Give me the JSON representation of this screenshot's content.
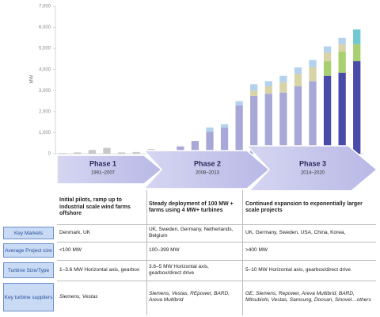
{
  "chart_data": {
    "type": "bar",
    "stacked": true,
    "y_label": "MW",
    "categories": [
      null,
      null,
      null,
      null,
      null,
      null,
      null,
      null,
      null,
      null,
      null,
      null,
      null,
      null,
      null,
      null,
      null,
      null,
      null,
      null,
      null
    ],
    "series": [
      {
        "color": "#c8c8c8",
        "values": [
          30,
          60,
          180,
          280,
          60,
          80,
          220,
          null,
          null,
          null,
          null,
          null,
          null,
          null,
          null,
          null,
          null,
          null,
          null,
          null,
          null
        ]
      },
      {
        "color": "#a8a8d8",
        "values": [
          null,
          null,
          null,
          null,
          null,
          null,
          null,
          120,
          350,
          600,
          1050,
          1250,
          2300,
          2750,
          2850,
          2900,
          3200,
          3450,
          null,
          null,
          null
        ]
      },
      {
        "color": "#4a4aa8",
        "values": [
          null,
          null,
          null,
          null,
          null,
          null,
          null,
          null,
          null,
          null,
          null,
          null,
          null,
          null,
          null,
          null,
          null,
          null,
          3700,
          3850,
          4400
        ]
      },
      {
        "color": "#a8d070",
        "values": [
          null,
          null,
          null,
          null,
          null,
          null,
          null,
          null,
          null,
          null,
          null,
          null,
          null,
          null,
          null,
          null,
          null,
          null,
          700,
          1000,
          800
        ]
      },
      {
        "color": "#d8d4a8",
        "values": [
          null,
          null,
          null,
          null,
          null,
          null,
          null,
          null,
          null,
          null,
          null,
          null,
          null,
          250,
          350,
          500,
          600,
          650,
          400,
          350,
          null
        ]
      },
      {
        "color": "#b4d2ee",
        "values": [
          null,
          null,
          null,
          null,
          null,
          null,
          null,
          null,
          null,
          null,
          200,
          150,
          200,
          300,
          250,
          300,
          300,
          350,
          300,
          300,
          null
        ]
      },
      {
        "color": "#70c8d0",
        "values": [
          null,
          null,
          null,
          null,
          null,
          null,
          null,
          null,
          null,
          null,
          null,
          null,
          null,
          null,
          null,
          null,
          null,
          null,
          null,
          null,
          700
        ]
      }
    ],
    "ylim": [
      0,
      7000
    ],
    "yticks": [
      0,
      {
        "value": 1000,
        "label": "1,000"
      },
      {
        "value": 2000,
        "label": "2,000"
      },
      {
        "value": 3000,
        "label": "3,000"
      },
      {
        "value": 4000,
        "label": "4,000"
      },
      {
        "value": 5000,
        "label": "5,000"
      },
      {
        "value": 6000,
        "label": "6,000"
      },
      {
        "value": 7000,
        "label": "7,000"
      }
    ]
  },
  "phases": [
    {
      "name": "Phase 1",
      "years": "1991–2007"
    },
    {
      "name": "Phase 2",
      "years": "2008–2013"
    },
    {
      "name": "Phase 3",
      "years": "2014–2020"
    }
  ],
  "table": {
    "header": [
      "Initial pilots, ramp up to industrial scale wind farms offshore",
      "Steady deployment of 100 MW + farms using 4 MW+ turbines",
      "Continued expansion to exponentially larger scale projects"
    ],
    "rows": [
      {
        "label": "Key Markets",
        "cells": [
          "Denmark, UK",
          "UK, Sweden, Germany, Netherlands, Belgium",
          "UK, Germany, Sweden, USA, China, Korea,"
        ]
      },
      {
        "label": "Average Project size",
        "cells": [
          "<100 MW",
          "100–399 MW",
          ">400 MW"
        ]
      },
      {
        "label": "Turbine Size/Type",
        "cells": [
          "1–3.6 MW Horizontal axis, gearbox",
          "3.6–5 MW Horizontal axis, gearbox/direct drive",
          "5–10 MW Horizontal axis, gearbox/direct drive"
        ]
      },
      {
        "label": "Key turbine suppliers",
        "cells": [
          "Siemens, Vestas",
          "Siemens, Vestas, REpower, BARD, Areva Multibrid",
          "GE, Siemens, Repower, Areva Multibrid, BARD, Mitsubishi, Vestas, Samsung, Doosan, Sinovel…others"
        ]
      }
    ]
  }
}
